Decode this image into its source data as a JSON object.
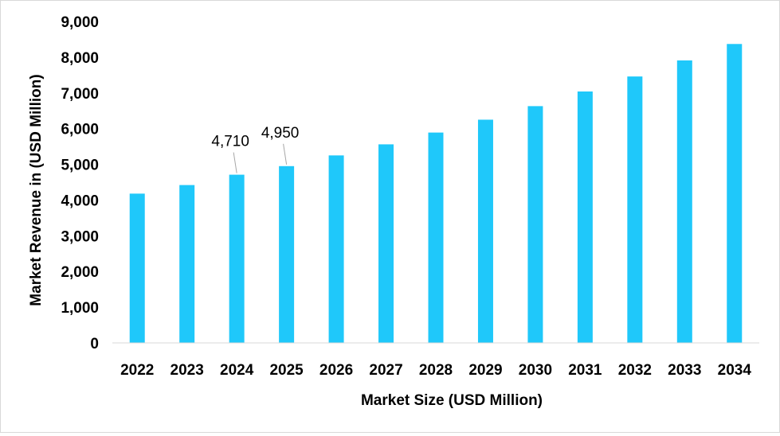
{
  "chart_data": {
    "type": "bar",
    "title": "",
    "xlabel": "Market Size (USD Million)",
    "ylabel": "Market Revenue in (USD Million)",
    "categories": [
      "2022",
      "2023",
      "2024",
      "2025",
      "2026",
      "2027",
      "2028",
      "2029",
      "2030",
      "2031",
      "2032",
      "2033",
      "2034"
    ],
    "values": [
      4180,
      4420,
      4710,
      4950,
      5250,
      5560,
      5890,
      6250,
      6630,
      7040,
      7460,
      7910,
      8370
    ],
    "ylim": [
      0,
      9000
    ],
    "yticks": [
      0,
      1000,
      2000,
      3000,
      4000,
      5000,
      6000,
      7000,
      8000,
      9000
    ],
    "ytick_labels": [
      "0",
      "1,000",
      "2,000",
      "3,000",
      "4,000",
      "5,000",
      "6,000",
      "7,000",
      "8,000",
      "9,000"
    ],
    "grid": false,
    "legend": "none",
    "bar_color": "#1FC8FA",
    "annotations": [
      {
        "category": "2024",
        "text": "4,710"
      },
      {
        "category": "2025",
        "text": "4,950"
      }
    ]
  }
}
